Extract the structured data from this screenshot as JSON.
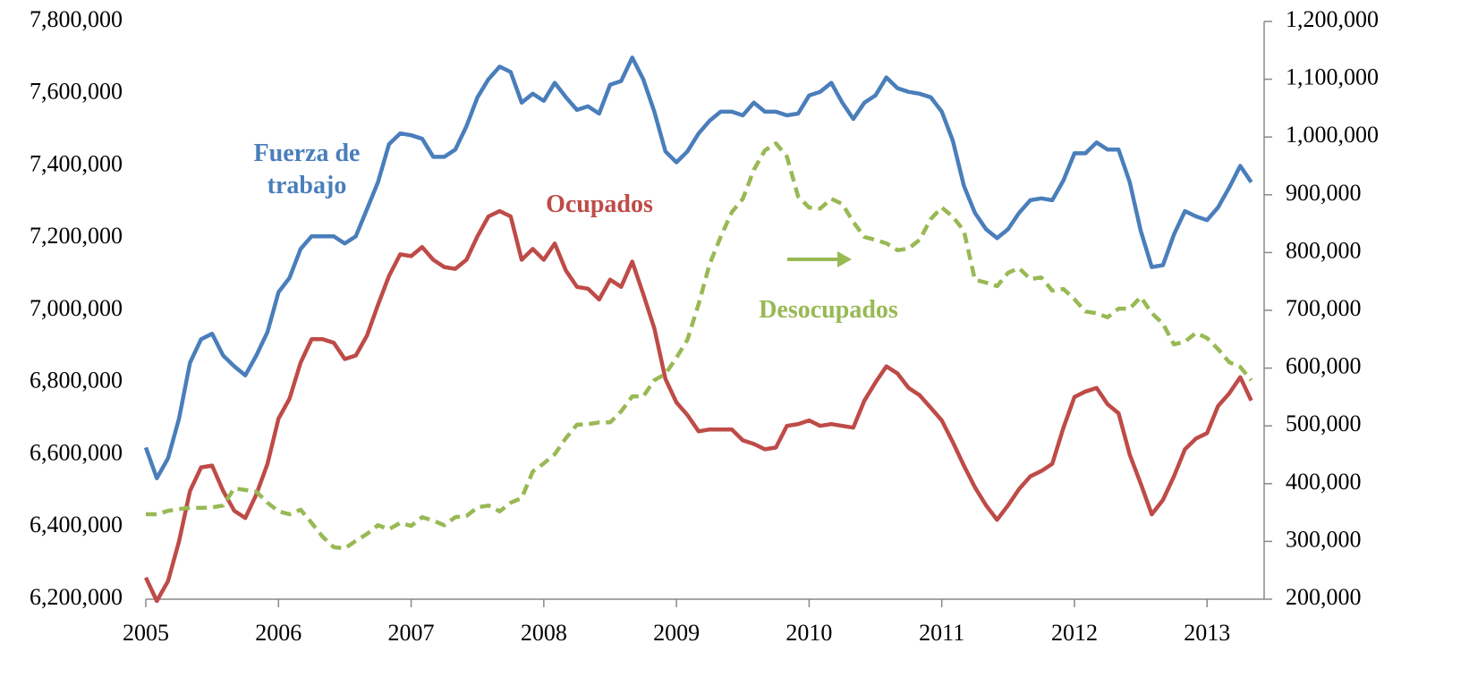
{
  "chart_data": {
    "type": "line",
    "x": [
      2005,
      2005.083,
      2005.167,
      2005.25,
      2005.333,
      2005.417,
      2005.5,
      2005.583,
      2005.667,
      2005.75,
      2005.833,
      2005.917,
      2006,
      2006.083,
      2006.167,
      2006.25,
      2006.333,
      2006.417,
      2006.5,
      2006.583,
      2006.667,
      2006.75,
      2006.833,
      2006.917,
      2007,
      2007.083,
      2007.167,
      2007.25,
      2007.333,
      2007.417,
      2007.5,
      2007.583,
      2007.667,
      2007.75,
      2007.833,
      2007.917,
      2008,
      2008.083,
      2008.167,
      2008.25,
      2008.333,
      2008.417,
      2008.5,
      2008.583,
      2008.667,
      2008.75,
      2008.833,
      2008.917,
      2009,
      2009.083,
      2009.167,
      2009.25,
      2009.333,
      2009.417,
      2009.5,
      2009.583,
      2009.667,
      2009.75,
      2009.833,
      2009.917,
      2010,
      2010.083,
      2010.167,
      2010.25,
      2010.333,
      2010.417,
      2010.5,
      2010.583,
      2010.667,
      2010.75,
      2010.833,
      2010.917,
      2011,
      2011.083,
      2011.167,
      2011.25,
      2011.333,
      2011.417,
      2011.5,
      2011.583,
      2011.667,
      2011.75,
      2011.833,
      2011.917,
      2012,
      2012.083,
      2012.167,
      2012.25,
      2012.333,
      2012.417,
      2012.5,
      2012.583,
      2012.667,
      2012.75,
      2012.833,
      2012.917,
      2013,
      2013.083,
      2013.167,
      2013.25,
      2013.333
    ],
    "series": [
      {
        "name": "Fuerza de trabajo",
        "color": "#4a7ebb",
        "axis": "y",
        "values": [
          6620000,
          6535000,
          6590000,
          6700000,
          6855000,
          6920000,
          6935000,
          6875000,
          6845000,
          6820000,
          6875000,
          6940000,
          7050000,
          7090000,
          7170000,
          7205000,
          7205000,
          7205000,
          7185000,
          7205000,
          7280000,
          7355000,
          7460000,
          7490000,
          7485000,
          7475000,
          7425000,
          7425000,
          7445000,
          7510000,
          7590000,
          7640000,
          7675000,
          7660000,
          7575000,
          7600000,
          7580000,
          7630000,
          7590000,
          7555000,
          7565000,
          7545000,
          7625000,
          7635000,
          7700000,
          7640000,
          7550000,
          7440000,
          7410000,
          7440000,
          7490000,
          7525000,
          7550000,
          7550000,
          7540000,
          7575000,
          7550000,
          7550000,
          7540000,
          7545000,
          7595000,
          7605000,
          7630000,
          7575000,
          7530000,
          7575000,
          7595000,
          7645000,
          7615000,
          7605000,
          7600000,
          7590000,
          7550000,
          7470000,
          7345000,
          7270000,
          7225000,
          7200000,
          7225000,
          7270000,
          7305000,
          7310000,
          7305000,
          7360000,
          7435000,
          7435000,
          7465000,
          7445000,
          7445000,
          7355000,
          7220000,
          7120000,
          7125000,
          7210000,
          7275000,
          7260000,
          7250000,
          7285000,
          7340000,
          7400000,
          7355000
        ]
      },
      {
        "name": "Ocupados",
        "color": "#be4b48",
        "axis": "y",
        "values": [
          6260000,
          6195000,
          6250000,
          6360000,
          6500000,
          6565000,
          6570000,
          6500000,
          6445000,
          6425000,
          6490000,
          6575000,
          6700000,
          6755000,
          6855000,
          6920000,
          6920000,
          6910000,
          6865000,
          6875000,
          6930000,
          7015000,
          7095000,
          7155000,
          7150000,
          7175000,
          7140000,
          7120000,
          7115000,
          7140000,
          7205000,
          7260000,
          7275000,
          7260000,
          7140000,
          7170000,
          7140000,
          7185000,
          7110000,
          7065000,
          7060000,
          7030000,
          7085000,
          7065000,
          7135000,
          7045000,
          6950000,
          6810000,
          6745000,
          6710000,
          6665000,
          6670000,
          6670000,
          6670000,
          6640000,
          6630000,
          6615000,
          6620000,
          6680000,
          6685000,
          6695000,
          6680000,
          6685000,
          6680000,
          6675000,
          6750000,
          6800000,
          6845000,
          6825000,
          6785000,
          6765000,
          6730000,
          6695000,
          6635000,
          6570000,
          6510000,
          6460000,
          6420000,
          6460000,
          6505000,
          6540000,
          6555000,
          6575000,
          6675000,
          6760000,
          6775000,
          6785000,
          6740000,
          6715000,
          6600000,
          6520000,
          6435000,
          6475000,
          6540000,
          6615000,
          6645000,
          6660000,
          6735000,
          6770000,
          6815000,
          6750000
        ]
      },
      {
        "name": "Desocupados",
        "color": "#98b954",
        "axis": "y2",
        "dashed": true,
        "values": [
          347000,
          347000,
          353000,
          356000,
          358000,
          358000,
          359000,
          362000,
          392000,
          389000,
          386000,
          367000,
          352000,
          347000,
          355000,
          332000,
          308000,
          290000,
          288000,
          301000,
          313000,
          328000,
          321000,
          332000,
          327000,
          342000,
          336000,
          328000,
          342000,
          344000,
          359000,
          362000,
          352000,
          367000,
          375000,
          421000,
          435000,
          451000,
          479000,
          502000,
          503000,
          506000,
          506000,
          525000,
          551000,
          551000,
          579000,
          590000,
          618000,
          649000,
          711000,
          780000,
          827000,
          870000,
          893000,
          943000,
          977000,
          989000,
          966000,
          897000,
          878000,
          876000,
          893000,
          884000,
          853000,
          827000,
          822000,
          816000,
          804000,
          807000,
          822000,
          858000,
          878000,
          862000,
          838000,
          753000,
          748000,
          742000,
          765000,
          773000,
          754000,
          757000,
          734000,
          737000,
          719000,
          698000,
          695000,
          688000,
          703000,
          703000,
          723000,
          695000,
          677000,
          641000,
          646000,
          661000,
          652000,
          633000,
          610000,
          602000,
          579000
        ]
      }
    ],
    "xlim": [
      2005,
      2013.43
    ],
    "xticks": [
      2005,
      2006,
      2007,
      2008,
      2009,
      2010,
      2011,
      2012,
      2013
    ],
    "ylim": [
      6200000,
      7800000
    ],
    "yticks": [
      {
        "value": 6200000,
        "label": "6,200,000"
      },
      {
        "value": 6400000,
        "label": "6,400,000"
      },
      {
        "value": 6600000,
        "label": "6,600,000"
      },
      {
        "value": 6800000,
        "label": "6,800,000"
      },
      {
        "value": 7000000,
        "label": "7,000,000"
      },
      {
        "value": 7200000,
        "label": "7,200,000"
      },
      {
        "value": 7400000,
        "label": "7,400,000"
      },
      {
        "value": 7600000,
        "label": "7,600,000"
      },
      {
        "value": 7800000,
        "label": "7,800,000"
      }
    ],
    "y2lim": [
      200000,
      1200000
    ],
    "y2ticks": [
      {
        "value": 200000,
        "label": "200,000"
      },
      {
        "value": 300000,
        "label": "300,000"
      },
      {
        "value": 400000,
        "label": "400,000"
      },
      {
        "value": 500000,
        "label": "500,000"
      },
      {
        "value": 600000,
        "label": "600,000"
      },
      {
        "value": 700000,
        "label": "700,000"
      },
      {
        "value": 800000,
        "label": "800,000"
      },
      {
        "value": 900000,
        "label": "900,000"
      },
      {
        "value": 1000000,
        "label": "1,000,000"
      },
      {
        "value": 1100000,
        "label": "1,100,000"
      },
      {
        "value": 1200000,
        "label": "1,200,000"
      }
    ],
    "grid": false
  }
}
